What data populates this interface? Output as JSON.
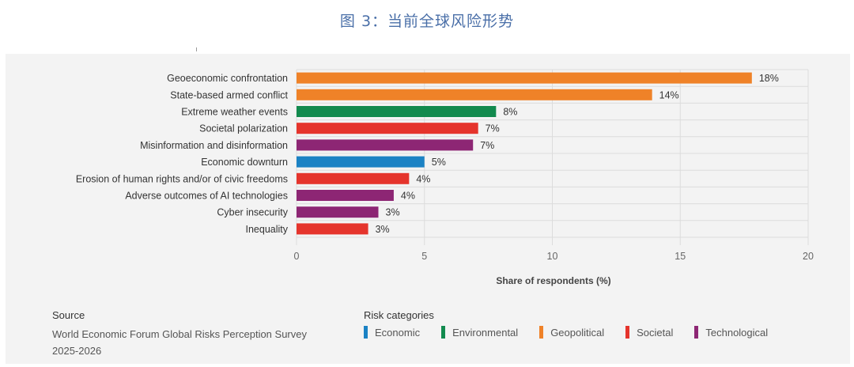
{
  "figure_title": "图 3：当前全球风险形势",
  "chart_data": {
    "type": "bar",
    "orientation": "horizontal",
    "categories": [
      "Geoeconomic confrontation",
      "State-based armed conflict",
      "Extreme weather events",
      "Societal polarization",
      "Misinformation and disinformation",
      "Economic downturn",
      "Erosion of human rights and/or of civic freedoms",
      "Adverse outcomes of AI technologies",
      "Cyber insecurity",
      "Inequality"
    ],
    "values": [
      17.8,
      13.9,
      7.8,
      7.1,
      6.9,
      5.0,
      4.4,
      3.8,
      3.2,
      2.8
    ],
    "value_labels": [
      "18%",
      "14%",
      "8%",
      "7%",
      "7%",
      "5%",
      "4%",
      "4%",
      "3%",
      "3%"
    ],
    "bar_categories": [
      "Geopolitical",
      "Geopolitical",
      "Environmental",
      "Societal",
      "Technological",
      "Economic",
      "Societal",
      "Technological",
      "Technological",
      "Societal"
    ],
    "xlabel": "Share of respondents (%)",
    "ylabel": "",
    "xlim": [
      0,
      20
    ],
    "xticks": [
      0,
      5,
      10,
      15,
      20
    ],
    "grid": true,
    "legend_placement": "bottom",
    "colors": {
      "Economic": "#1b82c4",
      "Environmental": "#128a4e",
      "Geopolitical": "#ef8228",
      "Societal": "#e5342c",
      "Technological": "#8d2674"
    }
  },
  "source": {
    "title": "Source",
    "text": "World Economic Forum Global Risks Perception Survey 2025-2026"
  },
  "legend": {
    "title": "Risk categories",
    "items": [
      "Economic",
      "Environmental",
      "Geopolitical",
      "Societal",
      "Technological"
    ]
  }
}
